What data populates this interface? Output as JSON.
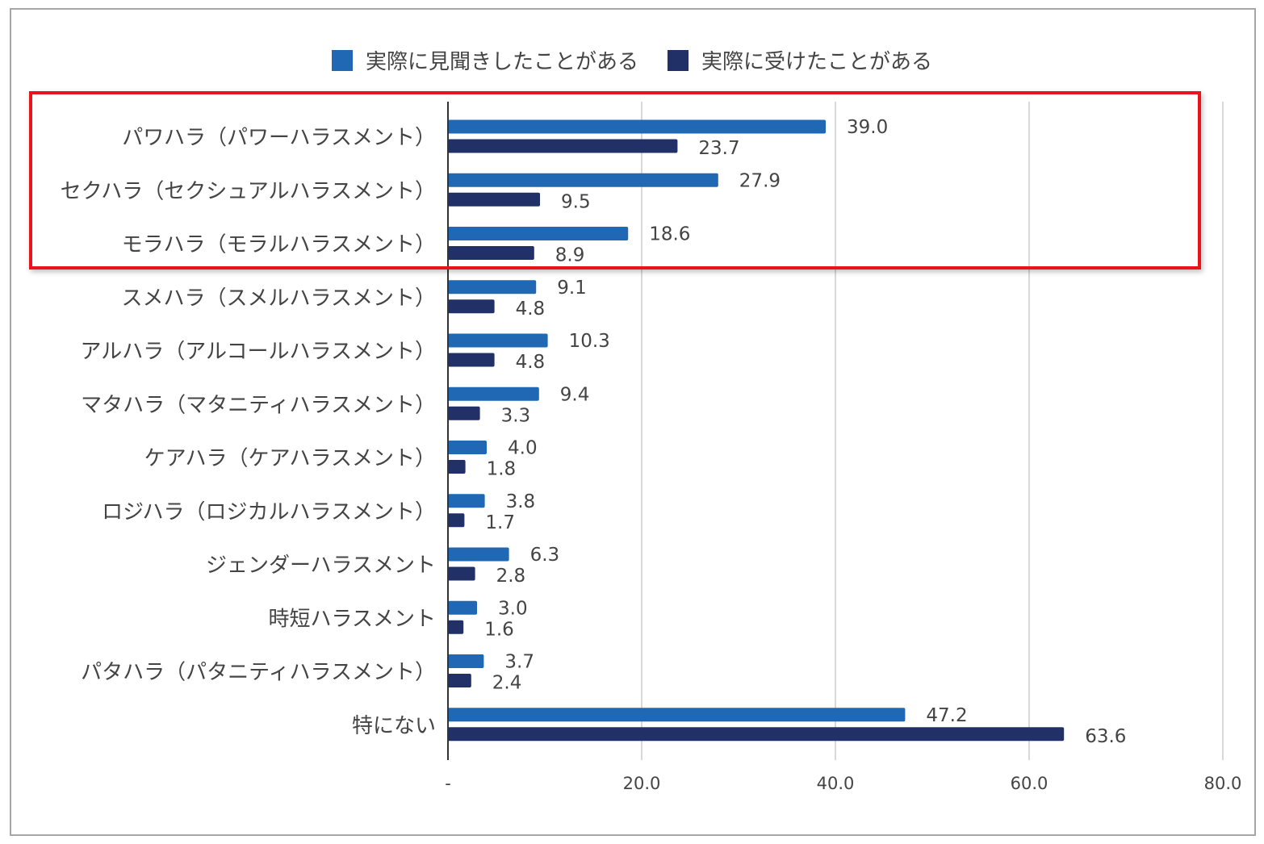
{
  "chart_data": {
    "type": "bar",
    "orientation": "horizontal",
    "categories": [
      "パワハラ（パワーハラスメント）",
      "セクハラ（セクシュアルハラスメント）",
      "モラハラ（モラルハラスメント）",
      "スメハラ（スメルハラスメント）",
      "アルハラ（アルコールハラスメント）",
      "マタハラ（マタニティハラスメント）",
      "ケアハラ（ケアハラスメント）",
      "ロジハラ（ロジカルハラスメント）",
      "ジェンダーハラスメント",
      "時短ハラスメント",
      "パタハラ（パタニティハラスメント）",
      "特にない"
    ],
    "series": [
      {
        "name": "実際に見聞きしたことがある",
        "color": "#2068b3",
        "values": [
          39.0,
          27.9,
          18.6,
          9.1,
          10.3,
          9.4,
          4.0,
          3.8,
          6.3,
          3.0,
          3.7,
          47.2
        ],
        "labels": [
          "39.0",
          "27.9",
          "18.6",
          "9.1",
          "10.3",
          "9.4",
          "4.0",
          "3.8",
          "6.3",
          "3.0",
          "3.7",
          "47.2"
        ]
      },
      {
        "name": "実際に受けたことがある",
        "color": "#223068",
        "values": [
          23.7,
          9.5,
          8.9,
          4.8,
          4.8,
          3.3,
          1.8,
          1.7,
          2.8,
          1.6,
          2.4,
          63.6
        ],
        "labels": [
          "23.7",
          "9.5",
          "8.9",
          "4.8",
          "4.8",
          "3.3",
          "1.8",
          "1.7",
          "2.8",
          "1.6",
          "2.4",
          "63.6"
        ]
      }
    ],
    "xlim": [
      0,
      80
    ],
    "xticks": [
      0,
      20,
      40,
      60,
      80
    ],
    "xtick_labels": [
      "-",
      "20.0",
      "40.0",
      "60.0",
      "80.0"
    ],
    "grid": true,
    "legend_position": "top",
    "highlight": "red box around first three categories"
  }
}
